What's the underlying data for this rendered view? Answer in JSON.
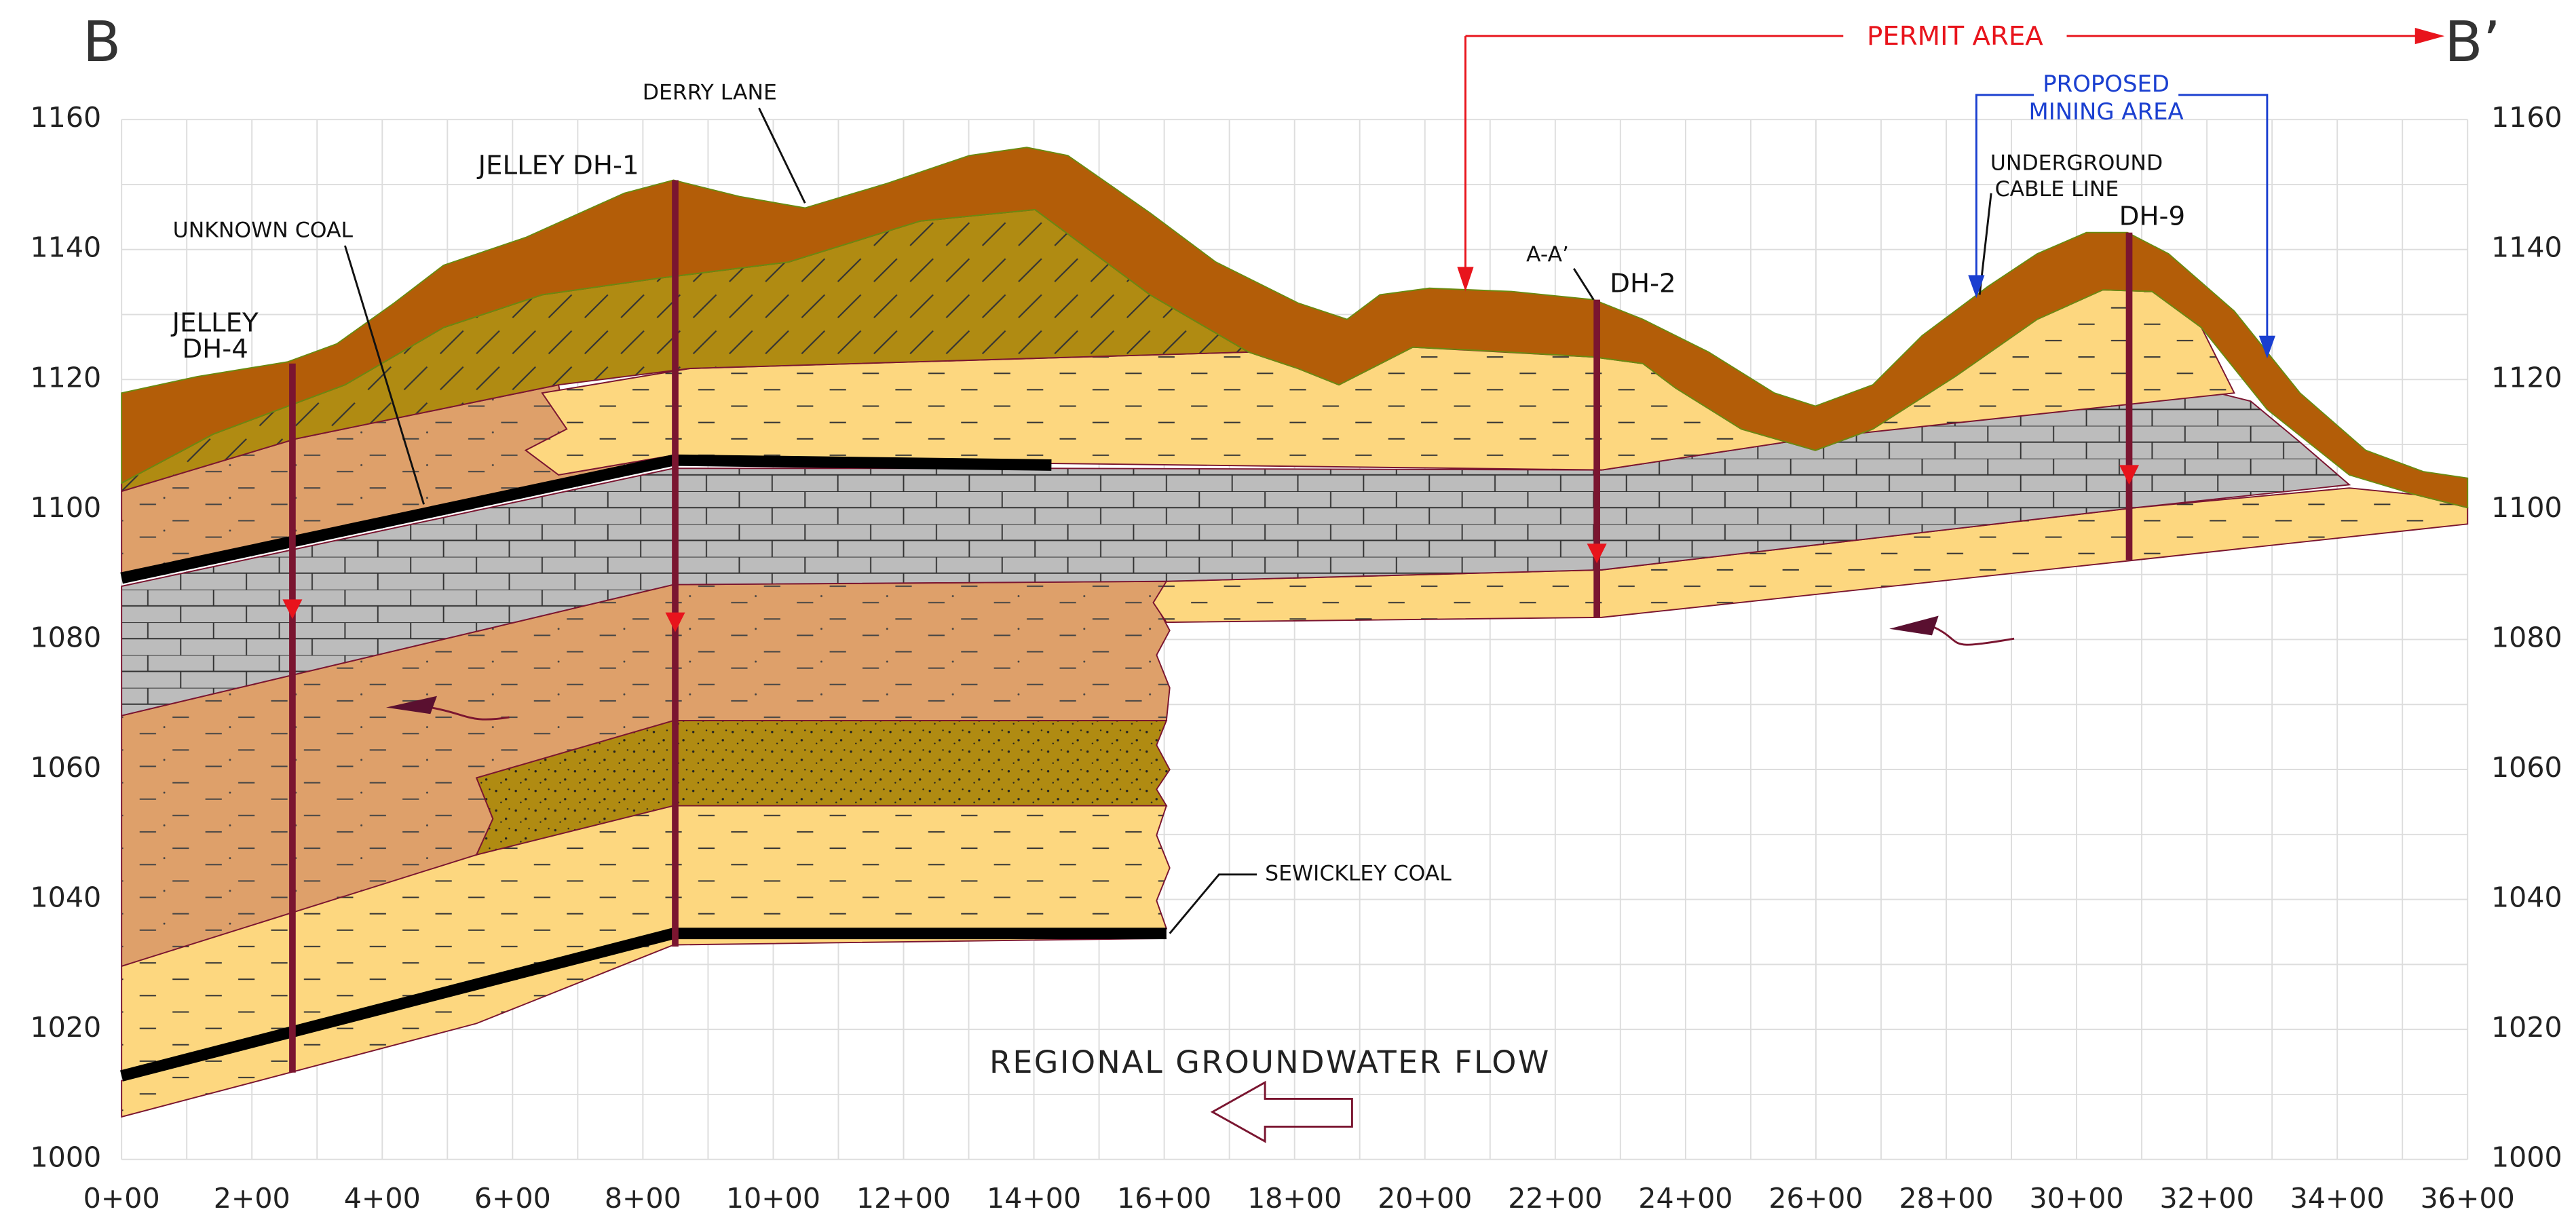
{
  "header": {
    "left_label": "B",
    "right_label": "B’"
  },
  "annotations": {
    "permit_area": "PERMIT AREA",
    "proposed_1": "PROPOSED",
    "proposed_2": "MINING AREA",
    "derry_lane": "DERRY LANE",
    "jelley_dh1": "JELLEY DH-1",
    "unknown_coal": "UNKNOWN COAL",
    "jelley_dh4_1": "JELLEY",
    "jelley_dh4_2": "DH-4",
    "section_aa": "A-A’",
    "dh2": "DH-2",
    "cable_1": "UNDERGROUND",
    "cable_2": "CABLE LINE",
    "dh9": "DH-9",
    "sewickley_coal": "SEWICKLEY COAL",
    "groundwater": "REGIONAL GROUNDWATER FLOW"
  },
  "axes": {
    "elevations": [
      1160,
      1140,
      1120,
      1100,
      1080,
      1060,
      1040,
      1020,
      1000
    ],
    "stations": [
      "0+00",
      "2+00",
      "4+00",
      "6+00",
      "8+00",
      "10+00",
      "12+00",
      "14+00",
      "16+00",
      "18+00",
      "20+00",
      "22+00",
      "24+00",
      "26+00",
      "28+00",
      "30+00",
      "32+00",
      "34+00",
      "36+00"
    ]
  }
}
